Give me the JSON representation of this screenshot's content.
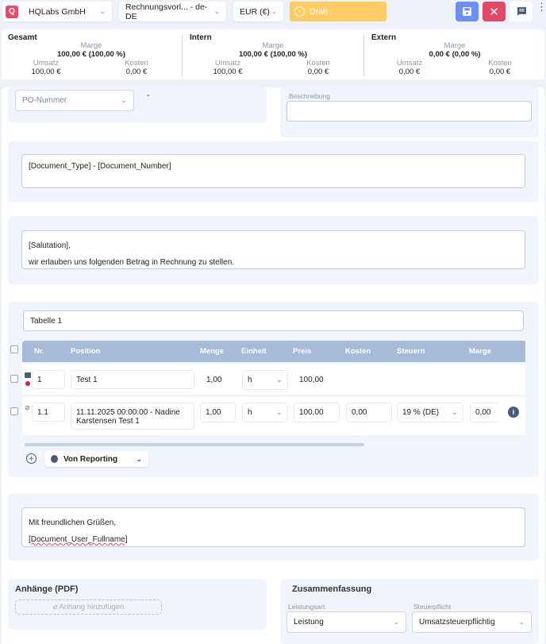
{
  "topbar": {
    "company": "HQLabs GmbH",
    "template": "Rechnungsvorl... - de-DE",
    "currency": "EUR (€)",
    "status": "Draft",
    "colors": {
      "logo": "#e94c6a",
      "draft": "#ffcc66",
      "save": "#6d8ef5",
      "close": "#e04a66"
    }
  },
  "summary": [
    {
      "title": "Gesamt",
      "marge_label": "Marge",
      "marge": "100,00 € (100,00 %)",
      "umsatz_label": "Umsatz",
      "umsatz": "100,00 €",
      "kosten_label": "Kosten",
      "kosten": "0,00 €"
    },
    {
      "title": "Intern",
      "marge_label": "Marge",
      "marge": "100,00 € (100,00 %)",
      "umsatz_label": "Umsatz",
      "umsatz": "100,00 €",
      "kosten_label": "Kosten",
      "kosten": "0,00 €"
    },
    {
      "title": "Extern",
      "marge_label": "Marge",
      "marge": "0,00 € (0,00 %)",
      "umsatz_label": "Umsatz",
      "umsatz": "0,00 €",
      "kosten_label": "Kosten",
      "kosten": "0,00 €"
    }
  ],
  "po": {
    "placeholder": "PO-Nummer",
    "dash": "-"
  },
  "beschreibung": {
    "label": "Beschreibung",
    "value": ""
  },
  "title_field": "[Document_Type] - [Document_Number]",
  "intro": {
    "line1": "[Salutation],",
    "line2": "wir erlauben uns folgenden Betrag in Rechnung zu stellen."
  },
  "table": {
    "name": "Tabelle 1",
    "headers": [
      "Nr.",
      "Position",
      "Menge",
      "Einheit",
      "Preis",
      "Kosten",
      "Steuern",
      "Marge"
    ],
    "rows": [
      {
        "nr": "1",
        "position": "Test 1",
        "menge": "1,00",
        "einheit": "h",
        "preis": "100,00"
      },
      {
        "nr": "1.1",
        "position": "11.11.2025 00:00:00 - Nadine Karstensen Test 1",
        "menge": "1,00",
        "einheit": "h",
        "preis": "100,00",
        "kosten": "0,00",
        "steuern": "19 % (DE)",
        "marge": "0,00"
      }
    ],
    "add_source": "Von Reporting"
  },
  "closing": {
    "line1": "Mit freundlichen Grüßen,",
    "line2": "[Document_User_Fullname]"
  },
  "attachments": {
    "title": "Anhänge (PDF)",
    "add": "Anhang hinzufügen"
  },
  "zusammenfassung": {
    "title": "Zusammenfassung",
    "leistungsart_label": "Leistungsart",
    "leistungsart": "Leistung",
    "steuerpflicht_label": "Steuerpflicht",
    "steuerpflicht": "Umsatzsteuerpflichtig"
  }
}
